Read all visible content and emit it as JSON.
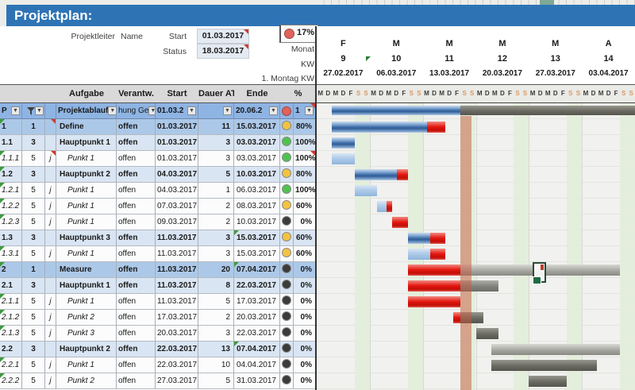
{
  "title": "Projektplan:",
  "meta": {
    "projektleiter_label": "Projektleiter",
    "projektleiter_value": "Name",
    "start_label": "Start",
    "start_value": "01.03.2017",
    "status_label": "Status",
    "status_value": "18.03.2017",
    "progress_value": "17%",
    "monat_label": "Monat",
    "kw_label": "KW",
    "montag_kw_label": "1. Montag KW"
  },
  "table": {
    "headers": {
      "aufgabe": "Aufgabe",
      "verantw": "Verantw.",
      "start": "Start",
      "dauer": "Dauer AT",
      "ende": "Ende",
      "pct": "%"
    },
    "filter": {
      "p": "P",
      "task": "Projektablauf",
      "resp": "hung Ge",
      "start": "01.03.2",
      "ende": "20.06.2",
      "pct": "1"
    },
    "rows": [
      {
        "id": "1",
        "prio": "1",
        "j": "",
        "task": "Define",
        "resp": "offen",
        "start": "01.03.2017",
        "dur": "11",
        "end": "15.03.2017",
        "icon": "yellow",
        "pct": "80%",
        "kind": "phase",
        "mk": {
          "p": "green",
          "j": "red"
        }
      },
      {
        "id": "1.1",
        "prio": "3",
        "j": "",
        "task": "Hauptpunkt 1",
        "resp": "offen",
        "start": "01.03.2017",
        "dur": "3",
        "end": "03.03.2017",
        "icon": "green",
        "pct": "100%",
        "kind": "group"
      },
      {
        "id": "1.1.1",
        "prio": "5",
        "j": "j",
        "task": "Punkt 1",
        "resp": "offen",
        "start": "01.03.2017",
        "dur": "3",
        "end": "03.03.2017",
        "icon": "green",
        "pct": "100%",
        "kind": "sub",
        "mk": {
          "p": "green",
          "j": "red",
          "pct": "red"
        }
      },
      {
        "id": "1.2",
        "prio": "3",
        "j": "",
        "task": "Hauptpunkt 2",
        "resp": "offen",
        "start": "04.03.2017",
        "dur": "5",
        "end": "10.03.2017",
        "icon": "yellow",
        "pct": "80%",
        "kind": "group",
        "mk": {
          "p": "green"
        }
      },
      {
        "id": "1.2.1",
        "prio": "5",
        "j": "j",
        "task": "Punkt 1",
        "resp": "offen",
        "start": "04.03.2017",
        "dur": "1",
        "end": "06.03.2017",
        "icon": "green",
        "pct": "100%",
        "kind": "sub",
        "mk": {
          "p": "green"
        }
      },
      {
        "id": "1.2.2",
        "prio": "5",
        "j": "j",
        "task": "Punkt 1",
        "resp": "offen",
        "start": "07.03.2017",
        "dur": "2",
        "end": "08.03.2017",
        "icon": "yellow",
        "pct": "60%",
        "kind": "sub",
        "mk": {
          "p": "green"
        }
      },
      {
        "id": "1.2.3",
        "prio": "5",
        "j": "j",
        "task": "Punkt 1",
        "resp": "offen",
        "start": "09.03.2017",
        "dur": "2",
        "end": "10.03.2017",
        "icon": "black",
        "pct": "0%",
        "kind": "sub",
        "mk": {
          "p": "green"
        }
      },
      {
        "id": "1.3",
        "prio": "3",
        "j": "",
        "task": "Hauptpunkt 3",
        "resp": "offen",
        "start": "11.03.2017",
        "dur": "3",
        "end": "15.03.2017",
        "icon": "yellow",
        "pct": "60%",
        "kind": "group",
        "mk": {
          "ende": "green"
        }
      },
      {
        "id": "1.3.1",
        "prio": "5",
        "j": "j",
        "task": "Punkt 1",
        "resp": "offen",
        "start": "11.03.2017",
        "dur": "3",
        "end": "15.03.2017",
        "icon": "yellow",
        "pct": "60%",
        "kind": "sub",
        "mk": {
          "p": "green"
        }
      },
      {
        "id": "2",
        "prio": "1",
        "j": "",
        "task": "Measure",
        "resp": "offen",
        "start": "11.03.2017",
        "dur": "20",
        "end": "07.04.2017",
        "icon": "black",
        "pct": "0%",
        "kind": "phase",
        "mk": {
          "p": "green",
          "ende": "green"
        }
      },
      {
        "id": "2.1",
        "prio": "3",
        "j": "",
        "task": "Hauptpunkt 1",
        "resp": "offen",
        "start": "11.03.2017",
        "dur": "8",
        "end": "22.03.2017",
        "icon": "black",
        "pct": "0%",
        "kind": "group"
      },
      {
        "id": "2.1.1",
        "prio": "5",
        "j": "j",
        "task": "Punkt 1",
        "resp": "offen",
        "start": "11.03.2017",
        "dur": "5",
        "end": "17.03.2017",
        "icon": "black",
        "pct": "0%",
        "kind": "sub",
        "mk": {
          "p": "green"
        }
      },
      {
        "id": "2.1.2",
        "prio": "5",
        "j": "j",
        "task": "Punkt 2",
        "resp": "offen",
        "start": "17.03.2017",
        "dur": "2",
        "end": "20.03.2017",
        "icon": "black",
        "pct": "0%",
        "kind": "sub",
        "mk": {
          "p": "green"
        }
      },
      {
        "id": "2.1.3",
        "prio": "5",
        "j": "j",
        "task": "Punkt 3",
        "resp": "offen",
        "start": "20.03.2017",
        "dur": "3",
        "end": "22.03.2017",
        "icon": "black",
        "pct": "0%",
        "kind": "sub",
        "mk": {
          "p": "green"
        }
      },
      {
        "id": "2.2",
        "prio": "3",
        "j": "",
        "task": "Hauptpunkt 2",
        "resp": "offen",
        "start": "22.03.2017",
        "dur": "13",
        "end": "07.04.2017",
        "icon": "black",
        "pct": "0%",
        "kind": "group",
        "mk": {
          "ende": "green"
        }
      },
      {
        "id": "2.2.1",
        "prio": "5",
        "j": "j",
        "task": "Punkt 1",
        "resp": "offen",
        "start": "22.03.2017",
        "dur": "10",
        "end": "04.04.2017",
        "icon": "black",
        "pct": "0%",
        "kind": "sub",
        "mk": {
          "p": "green"
        }
      },
      {
        "id": "2.2.2",
        "prio": "5",
        "j": "j",
        "task": "Punkt 2",
        "resp": "offen",
        "start": "27.03.2017",
        "dur": "5",
        "end": "31.03.2017",
        "icon": "black",
        "pct": "0%",
        "kind": "sub",
        "mk": {
          "p": "green"
        }
      }
    ]
  },
  "gantt": {
    "weeks": [
      {
        "m": "F",
        "kw": "9",
        "date": "27.02.2017"
      },
      {
        "m": "M",
        "kw": "10",
        "date": "06.03.2017"
      },
      {
        "m": "M",
        "kw": "11",
        "date": "13.03.2017"
      },
      {
        "m": "M",
        "kw": "12",
        "date": "20.03.2017"
      },
      {
        "m": "M",
        "kw": "13",
        "date": "27.03.2017"
      },
      {
        "m": "A",
        "kw": "14",
        "date": "03.04.2017"
      }
    ],
    "day_letters": [
      "M",
      "D",
      "M",
      "D",
      "F",
      "S",
      "S"
    ],
    "weekend_day_offsets": [
      5,
      6
    ],
    "status_line_day": 19,
    "summary_bar": [
      [
        2,
        19,
        "blue"
      ],
      [
        19,
        42,
        "gray1"
      ]
    ],
    "row_bars": [
      [
        [
          2,
          14.6,
          "blue"
        ],
        [
          14.6,
          17,
          "red"
        ]
      ],
      [
        [
          2,
          5,
          "blue"
        ]
      ],
      [
        [
          2,
          5,
          "lblue"
        ]
      ],
      [
        [
          5,
          10.6,
          "blue"
        ],
        [
          10.6,
          12,
          "red"
        ]
      ],
      [
        [
          5,
          8,
          "lblue"
        ]
      ],
      [
        [
          8,
          9.2,
          "lblue"
        ],
        [
          9.2,
          10,
          "red"
        ]
      ],
      [
        [
          10,
          12,
          "red"
        ]
      ],
      [
        [
          12,
          15,
          "blue"
        ],
        [
          15,
          17,
          "red"
        ]
      ],
      [
        [
          12,
          15,
          "lblue"
        ],
        [
          15,
          17,
          "red"
        ]
      ],
      [
        [
          12,
          19,
          "red"
        ],
        [
          19,
          40,
          "silver"
        ]
      ],
      [
        [
          12,
          19,
          "red"
        ],
        [
          19,
          24,
          "gray2"
        ]
      ],
      [
        [
          12,
          19,
          "red"
        ]
      ],
      [
        [
          18,
          19,
          "red"
        ],
        [
          19,
          22,
          "gray1"
        ]
      ],
      [
        [
          21,
          24,
          "gray1"
        ]
      ],
      [
        [
          23,
          40,
          "silver"
        ]
      ],
      [
        [
          23,
          37,
          "gray1"
        ]
      ],
      [
        [
          28,
          33,
          "gray1"
        ]
      ]
    ]
  },
  "colors": {
    "title_bar": "#2E74B5",
    "filter_row": "#8EB4E3",
    "phase_row": "#ACC8E8",
    "group_row": "#D9E5F3",
    "header_row": "#D9D9D9",
    "weekend_stripe": "#E2EDD9",
    "status_band": "rgba(197,88,58,0.5)",
    "bar_blue": "#3E6DA8",
    "bar_lightblue": "#A9C7E7",
    "bar_red": "#E3170F",
    "bar_gray_dark": "#6A6A62",
    "bar_gray_medium": "#82827C",
    "bar_silver": "#A3A39D",
    "circle_yellow": "#F2C341",
    "circle_green": "#4FC24F",
    "circle_black": "#3B3B3B",
    "circle_red": "#E0635C",
    "weekend_letter": "#D99A64"
  }
}
